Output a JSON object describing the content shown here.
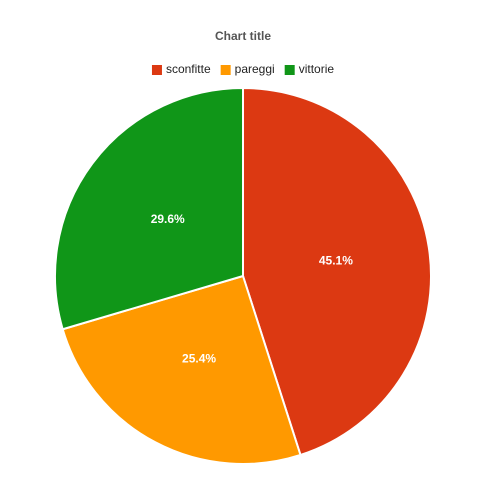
{
  "chart_data": {
    "type": "pie",
    "title": "Chart title",
    "categories": [
      "sconfitte",
      "pareggi",
      "vittorie"
    ],
    "values": [
      45.1,
      25.4,
      29.6
    ],
    "value_labels": [
      "45.1%",
      "25.4%",
      "29.6%"
    ],
    "colors": [
      "#dc3912",
      "#ff9900",
      "#109618"
    ],
    "legend": "top"
  }
}
